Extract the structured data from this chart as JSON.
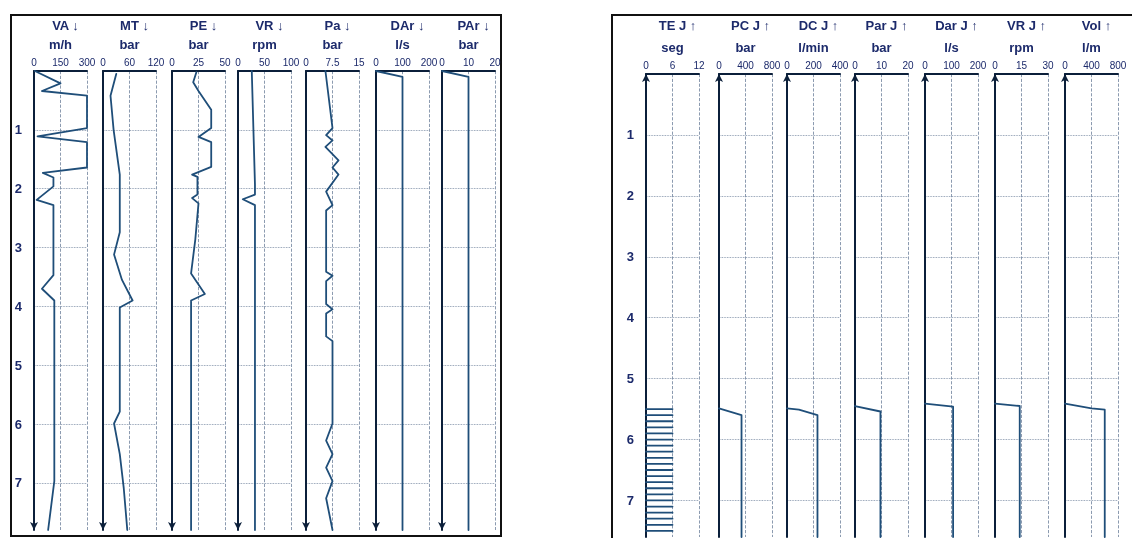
{
  "chart_data": [
    {
      "type": "line",
      "title": "VA ↓",
      "xlabel": "m/h",
      "xlim": [
        0,
        300
      ],
      "xticks": [
        0,
        150,
        300
      ],
      "ylim": [
        7.8,
        0
      ],
      "yticks": [
        1,
        2,
        3,
        4,
        5,
        6,
        7
      ],
      "grid": true,
      "series": [
        {
          "color": "#1f4e79",
          "x": [
            5,
            150,
            45,
            300,
            300,
            20,
            300,
            300,
            50,
            110,
            110,
            15,
            110,
            110,
            45,
            115,
            115,
            80
          ],
          "values": [
            0,
            0.21,
            0.34,
            0.42,
            0.97,
            1.11,
            1.21,
            1.64,
            1.73,
            1.81,
            1.96,
            2.19,
            2.28,
            3.47,
            3.7,
            3.9,
            6.97,
            7.8
          ]
        }
      ]
    },
    {
      "type": "line",
      "title": "MT ↓",
      "xlabel": "bar",
      "xlim": [
        0,
        120
      ],
      "xticks": [
        0,
        60,
        120
      ],
      "ylim": [
        7.8,
        0
      ],
      "yticks": [
        1,
        2,
        3,
        4,
        5,
        6,
        7
      ],
      "grid": true,
      "tick_labels": "x",
      "series": [
        {
          "color": "#1f4e79",
          "x": [
            30,
            17,
            24,
            38,
            38,
            25,
            43,
            67,
            38,
            38,
            25,
            38,
            47,
            55
          ],
          "values": [
            0.05,
            0.42,
            1.0,
            1.76,
            2.74,
            3.12,
            3.55,
            3.9,
            4.02,
            5.79,
            5.99,
            6.51,
            7.09,
            7.8
          ]
        }
      ]
    },
    {
      "type": "line",
      "title": "PE ↓",
      "xlabel": "bar",
      "xlim": [
        0,
        50
      ],
      "xticks": [
        0,
        25,
        50
      ],
      "ylim": [
        7.8,
        0
      ],
      "yticks": [
        1,
        2,
        3,
        4,
        5,
        6,
        7
      ],
      "grid": true,
      "tick_labels": "x",
      "series": [
        {
          "color": "#1f4e79",
          "x": [
            23,
            20,
            25,
            37,
            37,
            25,
            37,
            37,
            19,
            24,
            24,
            19,
            25,
            22,
            18,
            31,
            18,
            18
          ],
          "values": [
            0.02,
            0.19,
            0.34,
            0.66,
            0.97,
            1.12,
            1.21,
            1.63,
            1.76,
            1.8,
            2.1,
            2.16,
            2.25,
            2.86,
            3.44,
            3.79,
            3.9,
            7.8
          ]
        }
      ]
    },
    {
      "type": "line",
      "title": "VR ↓",
      "xlabel": "rpm",
      "xlim": [
        0,
        100
      ],
      "xticks": [
        0,
        50,
        100
      ],
      "ylim": [
        7.8,
        0
      ],
      "yticks": [
        1,
        2,
        3,
        4,
        5,
        6,
        7
      ],
      "grid": true,
      "tick_labels": "x",
      "series": [
        {
          "color": "#1f4e79",
          "x": [
            26,
            32,
            32,
            9,
            32,
            32
          ],
          "values": [
            0,
            1.93,
            2.1,
            2.18,
            2.28,
            7.8
          ]
        }
      ]
    },
    {
      "type": "line",
      "title": "Pa ↓",
      "xlabel": "bar",
      "xlim": [
        0,
        15
      ],
      "xticks": [
        0,
        {
          "value": 7.5,
          "label": "7.5"
        },
        15
      ],
      "ylim": [
        7.8,
        0
      ],
      "yticks": [
        1,
        2,
        3,
        4,
        5,
        6,
        7
      ],
      "grid": true,
      "tick_labels": "x",
      "series": [
        {
          "color": "#1f4e79",
          "x": [
            5.5,
            7.5,
            5.7,
            7.5,
            5.5,
            9.2,
            7.5,
            9.2,
            5.7,
            7.5,
            5.7,
            5.7,
            7.5,
            5.7,
            5.7,
            7.5,
            5.7,
            5.7,
            7.5,
            7.5,
            5.7,
            7.5,
            5.7,
            7.5,
            5.7,
            7.5
          ],
          "values": [
            0,
            0.97,
            1.09,
            1.18,
            1.29,
            1.52,
            1.64,
            1.76,
            2.05,
            2.28,
            2.37,
            3.41,
            3.48,
            3.57,
            3.96,
            4.05,
            4.12,
            4.51,
            4.59,
            5.99,
            6.28,
            6.51,
            6.74,
            6.97,
            7.26,
            7.8
          ]
        }
      ]
    },
    {
      "type": "line",
      "title": "DAr ↓",
      "xlabel": "l/s",
      "xlim": [
        0,
        200
      ],
      "xticks": [
        0,
        100,
        200
      ],
      "ylim": [
        7.8,
        0
      ],
      "yticks": [
        1,
        2,
        3,
        4,
        5,
        6,
        7
      ],
      "grid": true,
      "tick_labels": "x",
      "series": [
        {
          "color": "#1f4e79",
          "x": [
            0,
            100,
            100
          ],
          "values": [
            0,
            0.1,
            7.8
          ]
        }
      ]
    },
    {
      "type": "line",
      "title": "PAr ↓",
      "xlabel": "bar",
      "xlim": [
        0,
        20
      ],
      "xticks": [
        0,
        10,
        20
      ],
      "ylim": [
        7.8,
        0
      ],
      "yticks": [
        1,
        2,
        3,
        4,
        5,
        6,
        7
      ],
      "grid": true,
      "tick_labels": "x",
      "series": [
        {
          "color": "#1f4e79",
          "x": [
            0,
            10,
            10
          ],
          "values": [
            0,
            0.1,
            7.8
          ]
        }
      ]
    },
    {
      "type": "line",
      "title": "TE J ↑",
      "xlabel": "seg",
      "xlim": [
        0,
        12
      ],
      "xticks": [
        0,
        6,
        12
      ],
      "ylim": [
        7.6,
        0
      ],
      "yticks": [
        1,
        2,
        3,
        4,
        5,
        6,
        7
      ],
      "grid": true,
      "series": [
        {
          "color": "#1f4e79",
          "x": [
            0,
            6
          ],
          "values": [
            5.5,
            5.5
          ]
        },
        {
          "color": "#1f4e79",
          "x": [
            0,
            6
          ],
          "values": [
            5.6,
            5.6
          ]
        },
        {
          "color": "#1f4e79",
          "x": [
            0,
            6
          ],
          "values": [
            5.7,
            5.7
          ]
        },
        {
          "color": "#1f4e79",
          "x": [
            0,
            6
          ],
          "values": [
            5.8,
            5.8
          ]
        },
        {
          "color": "#1f4e79",
          "x": [
            0,
            6
          ],
          "values": [
            5.9,
            5.9
          ]
        },
        {
          "color": "#1f4e79",
          "x": [
            0,
            6
          ],
          "values": [
            6.0,
            6.0
          ]
        },
        {
          "color": "#1f4e79",
          "x": [
            0,
            6
          ],
          "values": [
            6.1,
            6.1
          ]
        },
        {
          "color": "#1f4e79",
          "x": [
            0,
            6
          ],
          "values": [
            6.2,
            6.2
          ]
        },
        {
          "color": "#1f4e79",
          "x": [
            0,
            6
          ],
          "values": [
            6.3,
            6.3
          ]
        },
        {
          "color": "#1f4e79",
          "x": [
            0,
            6
          ],
          "values": [
            6.4,
            6.4
          ]
        },
        {
          "color": "#1f4e79",
          "x": [
            0,
            6
          ],
          "values": [
            6.5,
            6.5
          ]
        },
        {
          "color": "#1f4e79",
          "x": [
            0,
            6
          ],
          "values": [
            6.6,
            6.6
          ]
        },
        {
          "color": "#1f4e79",
          "x": [
            0,
            6
          ],
          "values": [
            6.7,
            6.7
          ]
        },
        {
          "color": "#1f4e79",
          "x": [
            0,
            6
          ],
          "values": [
            6.8,
            6.8
          ]
        },
        {
          "color": "#1f4e79",
          "x": [
            0,
            6
          ],
          "values": [
            6.9,
            6.9
          ]
        },
        {
          "color": "#1f4e79",
          "x": [
            0,
            6
          ],
          "values": [
            7.0,
            7.0
          ]
        },
        {
          "color": "#1f4e79",
          "x": [
            0,
            6
          ],
          "values": [
            7.1,
            7.1
          ]
        },
        {
          "color": "#1f4e79",
          "x": [
            0,
            6
          ],
          "values": [
            7.2,
            7.2
          ]
        },
        {
          "color": "#1f4e79",
          "x": [
            0,
            6
          ],
          "values": [
            7.3,
            7.3
          ]
        },
        {
          "color": "#1f4e79",
          "x": [
            0,
            6
          ],
          "values": [
            7.4,
            7.4
          ]
        },
        {
          "color": "#1f4e79",
          "x": [
            0,
            6
          ],
          "values": [
            7.5,
            7.5
          ]
        }
      ]
    },
    {
      "type": "line",
      "title": "PC J ↑",
      "xlabel": "bar",
      "xlim": [
        0,
        800
      ],
      "xticks": [
        0,
        400,
        800
      ],
      "ylim": [
        7.6,
        0
      ],
      "yticks": [
        1,
        2,
        3,
        4,
        5,
        6,
        7
      ],
      "grid": true,
      "tick_labels": "x",
      "series": [
        {
          "color": "#1f4e79",
          "x": [
            0,
            340,
            340
          ],
          "values": [
            5.49,
            5.6,
            7.6
          ]
        }
      ]
    },
    {
      "type": "line",
      "title": "DC J ↑",
      "xlabel": "l/min",
      "xlim": [
        0,
        400
      ],
      "xticks": [
        0,
        200,
        400
      ],
      "ylim": [
        7.6,
        0
      ],
      "yticks": [
        1,
        2,
        3,
        4,
        5,
        6,
        7
      ],
      "grid": true,
      "tick_labels": "x",
      "series": [
        {
          "color": "#1f4e79",
          "x": [
            0,
            90,
            230,
            230
          ],
          "values": [
            5.49,
            5.51,
            5.6,
            7.6
          ]
        }
      ]
    },
    {
      "type": "line",
      "title": "Par J ↑",
      "xlabel": "bar",
      "xlim": [
        0,
        20
      ],
      "xticks": [
        0,
        10,
        20
      ],
      "ylim": [
        7.6,
        0
      ],
      "yticks": [
        1,
        2,
        3,
        4,
        5,
        6,
        7
      ],
      "grid": true,
      "tick_labels": "x",
      "series": [
        {
          "color": "#1f4e79",
          "x": [
            0,
            9.6,
            9.6
          ],
          "values": [
            5.45,
            5.54,
            7.6
          ]
        }
      ]
    },
    {
      "type": "line",
      "title": "Dar J ↑",
      "xlabel": "l/s",
      "xlim": [
        0,
        200
      ],
      "xticks": [
        0,
        100,
        200
      ],
      "ylim": [
        7.6,
        0
      ],
      "yticks": [
        1,
        2,
        3,
        4,
        5,
        6,
        7
      ],
      "grid": true,
      "tick_labels": "x",
      "series": [
        {
          "color": "#1f4e79",
          "x": [
            0,
            106,
            106
          ],
          "values": [
            5.41,
            5.46,
            7.6
          ]
        }
      ]
    },
    {
      "type": "line",
      "title": "VR J ↑",
      "xlabel": "rpm",
      "xlim": [
        0,
        30
      ],
      "xticks": [
        0,
        15,
        30
      ],
      "ylim": [
        7.6,
        0
      ],
      "yticks": [
        1,
        2,
        3,
        4,
        5,
        6,
        7
      ],
      "grid": true,
      "tick_labels": "x",
      "series": [
        {
          "color": "#1f4e79",
          "x": [
            0,
            14,
            14
          ],
          "values": [
            5.41,
            5.45,
            7.6
          ]
        }
      ]
    },
    {
      "type": "line",
      "title": "Vol ↑",
      "xlabel": "l/m",
      "xlim": [
        0,
        800
      ],
      "xticks": [
        0,
        400,
        800
      ],
      "ylim": [
        7.6,
        0
      ],
      "yticks": [
        1,
        2,
        3,
        4,
        5,
        6,
        7
      ],
      "grid": true,
      "tick_labels": "x",
      "series": [
        {
          "color": "#1f4e79",
          "x": [
            0,
            400,
            600,
            600
          ],
          "values": [
            5.41,
            5.49,
            5.51,
            7.6
          ]
        }
      ]
    }
  ]
}
